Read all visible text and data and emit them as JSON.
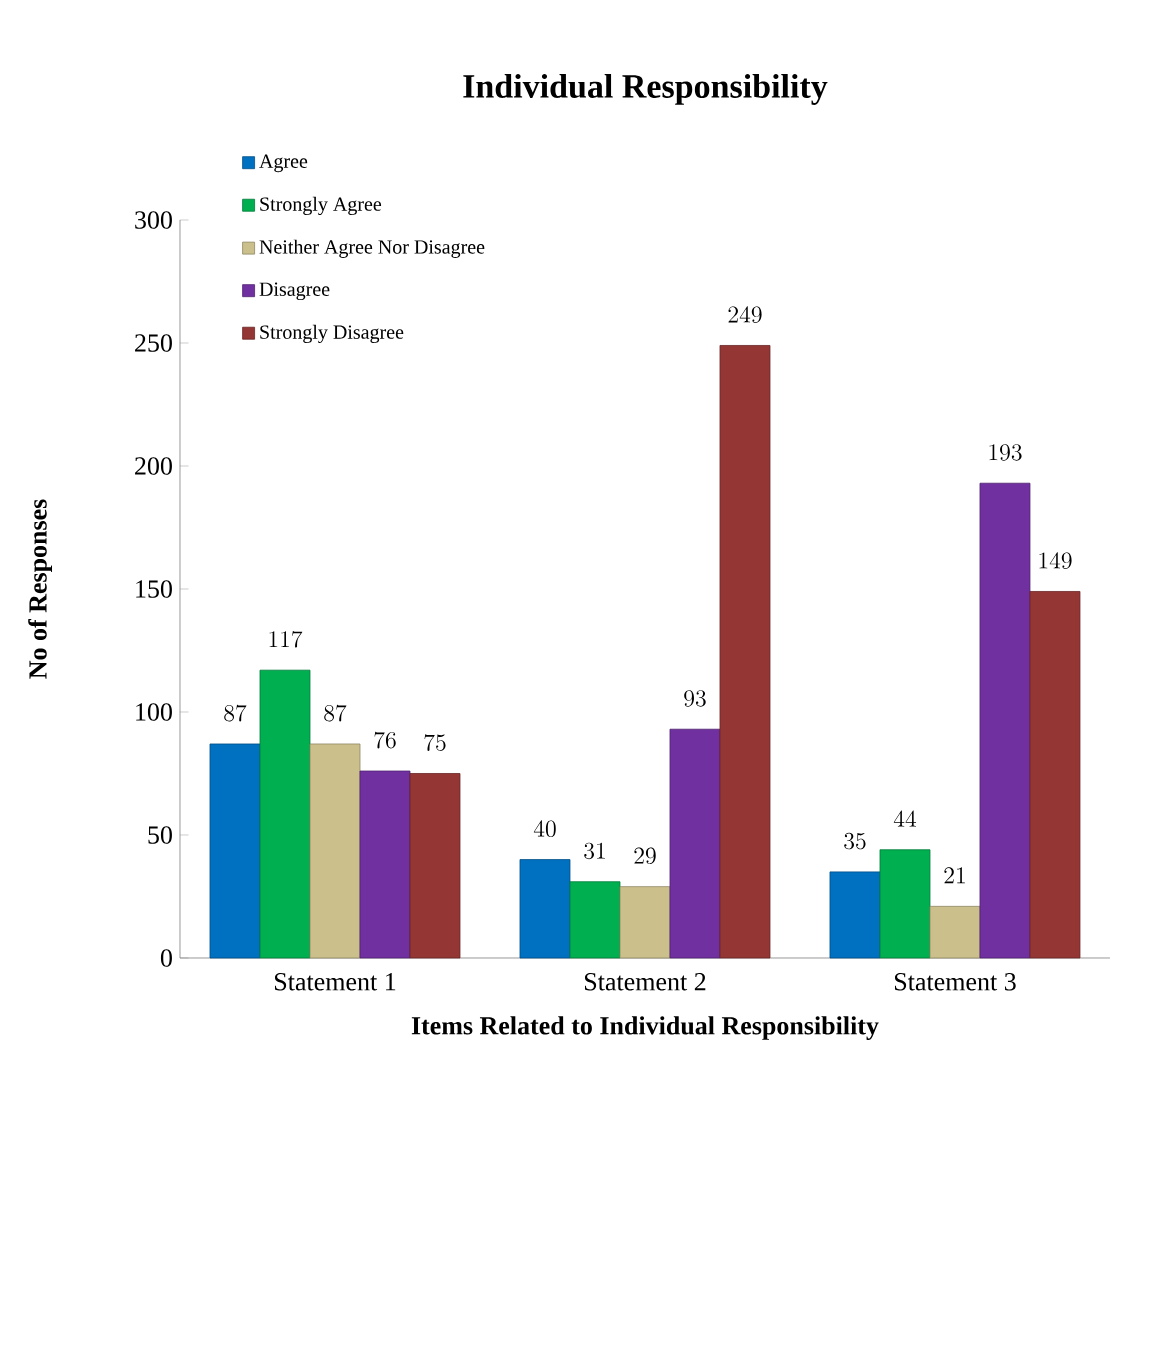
{
  "chart_data": {
    "type": "bar",
    "title": "Individual Responsibility",
    "xlabel": "Items Related to Individual Responsibility",
    "ylabel": "No of Responses",
    "categories": [
      "Statement 1",
      "Statement 2",
      "Statement 3"
    ],
    "series": [
      {
        "name": "Agree",
        "color": "#0070c0",
        "values": [
          87,
          40,
          35
        ]
      },
      {
        "name": "Strongly Agree",
        "color": "#00b050",
        "values": [
          117,
          31,
          44
        ]
      },
      {
        "name": "Neither Agree Nor Disagree",
        "color": "#cbc08c",
        "values": [
          87,
          29,
          21
        ]
      },
      {
        "name": "Disagree",
        "color": "#7030a0",
        "values": [
          76,
          93,
          193
        ]
      },
      {
        "name": "Strongly Disagree",
        "color": "#943634",
        "values": [
          75,
          249,
          149
        ]
      }
    ],
    "ylim": [
      0,
      300
    ],
    "yticks": [
      0,
      50,
      100,
      150,
      200,
      250,
      300
    ],
    "data_labels": true,
    "legend": "top left"
  }
}
